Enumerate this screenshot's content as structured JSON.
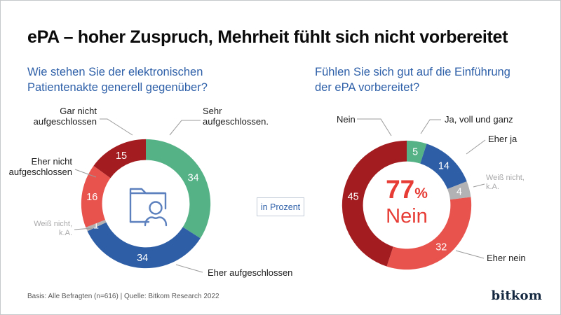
{
  "title": "ePA – hoher Zuspruch, Mehrheit fühlt sich nicht vorbereitet",
  "unit_label": "in Prozent",
  "footer": "Basis: Alle Befragten (n=616) | Quelle: Bitkom Research 2022",
  "logo": "bitkom",
  "colors": {
    "question_blue": "#2d5fa8",
    "green": "#55b287",
    "blue": "#2e5ea5",
    "gray": "#b2b2b4",
    "light_red": "#e8534e",
    "dark_red": "#a31d20",
    "highlight_red": "#e63c35",
    "label_gray": "#a9a9ab",
    "logo_navy": "#142840",
    "icon_blue": "#5b80bd"
  },
  "chart_data": [
    {
      "type": "pie",
      "subtype": "donut",
      "title": "Wie stehen Sie der elektronischen Patientenakte generell gegenüber?",
      "unit": "Prozent",
      "start_angle_deg": 0,
      "direction": "clockwise",
      "center_icon": "patient-record-folder-icon",
      "segments": [
        {
          "label": "Sehr aufgeschlossen.",
          "value": 34,
          "color": "#55b287"
        },
        {
          "label": "Eher aufgeschlossen",
          "value": 34,
          "color": "#2e5ea5"
        },
        {
          "label": "Weiß nicht, k.A.",
          "value": 1,
          "color": "#b2b2b4"
        },
        {
          "label": "Eher nicht aufgeschlossen",
          "value": 16,
          "color": "#e8534e"
        },
        {
          "label": "Gar nicht aufgeschlossen",
          "value": 15,
          "color": "#a31d20"
        }
      ]
    },
    {
      "type": "pie",
      "subtype": "donut",
      "title": "Fühlen Sie sich gut auf die Einführung der ePA vorbereitet?",
      "unit": "Prozent",
      "start_angle_deg": 0,
      "direction": "clockwise",
      "center_text": {
        "number": "77",
        "unit": "%",
        "word": "Nein"
      },
      "segments": [
        {
          "label": "Ja, voll und ganz",
          "value": 5,
          "color": "#55b287"
        },
        {
          "label": "Eher ja",
          "value": 14,
          "color": "#2e5ea5"
        },
        {
          "label": "Weiß nicht, k.A.",
          "value": 4,
          "color": "#b2b2b4"
        },
        {
          "label": "Eher nein",
          "value": 32,
          "color": "#e8534e"
        },
        {
          "label": "Nein",
          "value": 45,
          "color": "#a31d20"
        }
      ]
    }
  ]
}
